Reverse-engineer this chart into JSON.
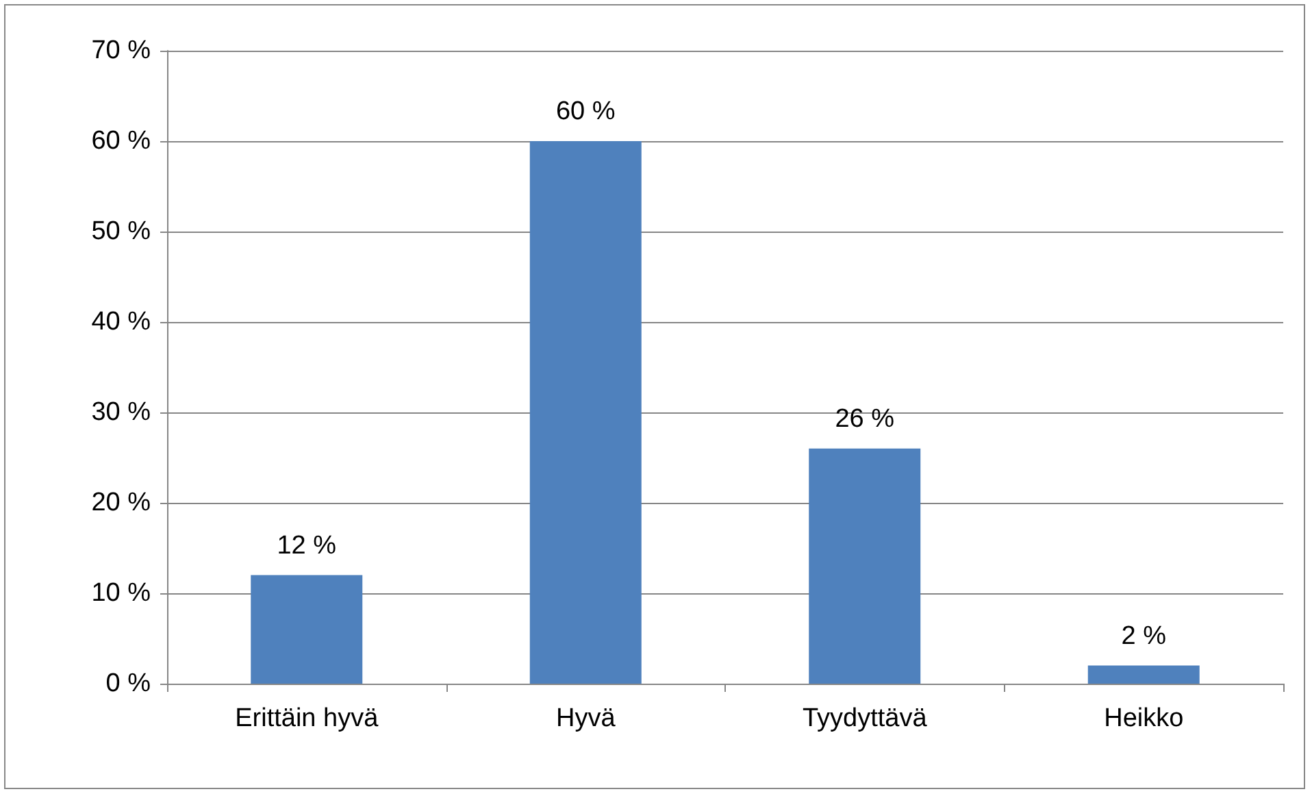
{
  "chart_data": {
    "type": "bar",
    "categories": [
      "Erittäin hyvä",
      "Hyvä",
      "Tyydyttävä",
      "Heikko"
    ],
    "values": [
      12,
      60,
      26,
      2
    ],
    "value_labels": [
      "12 %",
      "60 %",
      "26 %",
      "2 %"
    ],
    "color": "#4f81bd",
    "ylim": [
      0,
      70
    ],
    "yticks": [
      {
        "value": 0,
        "label": "0 %"
      },
      {
        "value": 10,
        "label": "10 %"
      },
      {
        "value": 20,
        "label": "20 %"
      },
      {
        "value": 30,
        "label": "30 %"
      },
      {
        "value": 40,
        "label": "40 %"
      },
      {
        "value": 50,
        "label": "50 %"
      },
      {
        "value": 60,
        "label": "60 %"
      },
      {
        "value": 70,
        "label": "70 %"
      }
    ],
    "grid": "y"
  }
}
